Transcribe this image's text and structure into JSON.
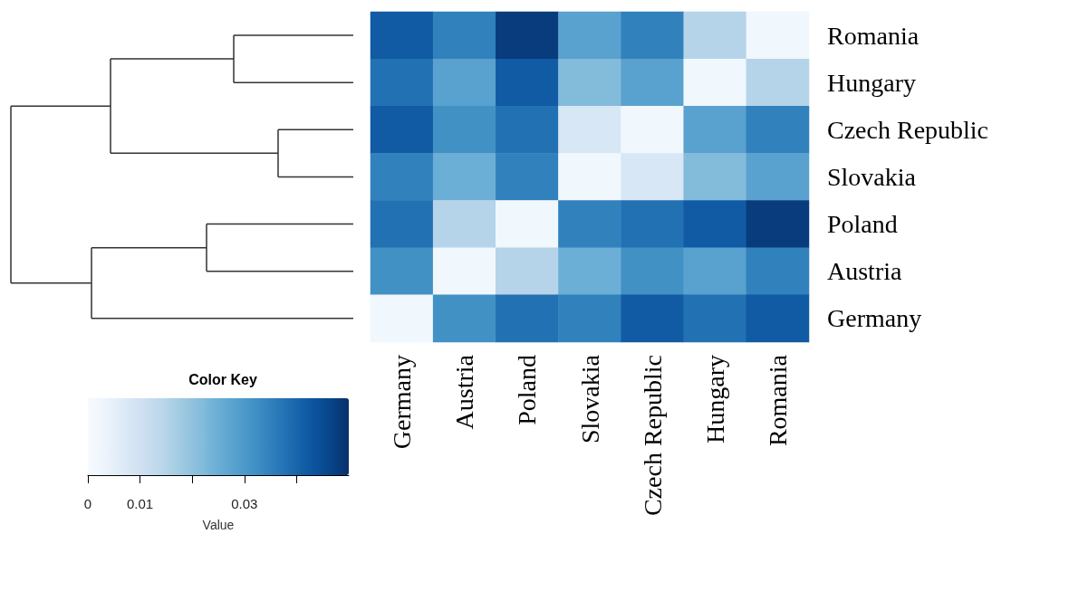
{
  "chart_data": {
    "type": "heatmap",
    "categories": [
      "Germany",
      "Austria",
      "Poland",
      "Slovakia",
      "Czech Republic",
      "Hungary",
      "Romania"
    ],
    "y_categories": [
      "Romania",
      "Hungary",
      "Czech Republic",
      "Slovakia",
      "Poland",
      "Austria",
      "Germany"
    ],
    "cells": [
      [
        0.042,
        0.035,
        0.048,
        0.028,
        0.035,
        0.015,
        0.002
      ],
      [
        0.038,
        0.028,
        0.042,
        0.022,
        0.028,
        0.002,
        0.015
      ],
      [
        0.042,
        0.032,
        0.038,
        0.008,
        0.002,
        0.028,
        0.035
      ],
      [
        0.035,
        0.025,
        0.035,
        0.002,
        0.008,
        0.022,
        0.028
      ],
      [
        0.038,
        0.015,
        0.002,
        0.035,
        0.038,
        0.042,
        0.048
      ],
      [
        0.032,
        0.002,
        0.015,
        0.025,
        0.032,
        0.028,
        0.035
      ],
      [
        0.002,
        0.032,
        0.038,
        0.035,
        0.042,
        0.038,
        0.042
      ]
    ],
    "clim": [
      0,
      0.05
    ],
    "cticks": [
      0,
      0.01,
      {
        "value": 0.02,
        "label": null
      },
      0.03,
      {
        "value": 0.04,
        "label": null
      }
    ],
    "legend_title": "Color Key",
    "clabel": "Value"
  }
}
